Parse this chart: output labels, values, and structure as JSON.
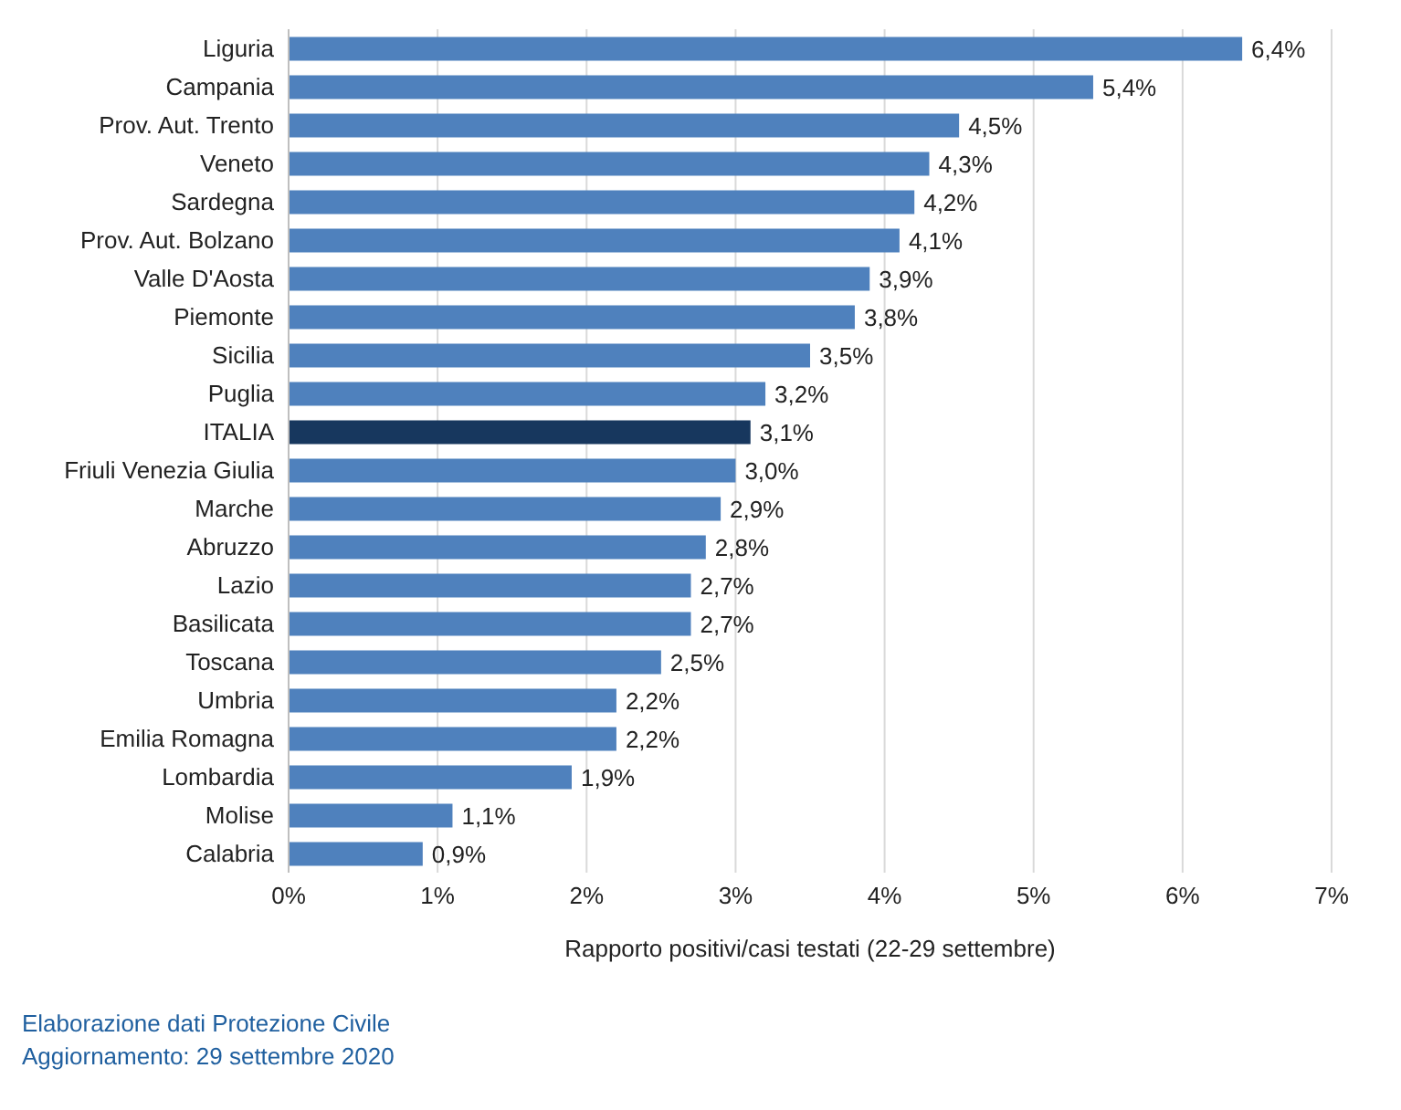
{
  "chart_data": {
    "type": "bar",
    "orientation": "horizontal",
    "xlabel": "Rapporto positivi/casi testati (22-29 settembre)",
    "categories": [
      "Liguria",
      "Campania",
      "Prov. Aut. Trento",
      "Veneto",
      "Sardegna",
      "Prov. Aut. Bolzano",
      "Valle D'Aosta",
      "Piemonte",
      "Sicilia",
      "Puglia",
      "ITALIA",
      "Friuli Venezia Giulia",
      "Marche",
      "Abruzzo",
      "Lazio",
      "Basilicata",
      "Toscana",
      "Umbria",
      "Emilia Romagna",
      "Lombardia",
      "Molise",
      "Calabria"
    ],
    "values": [
      6.4,
      5.4,
      4.5,
      4.3,
      4.2,
      4.1,
      3.9,
      3.8,
      3.5,
      3.2,
      3.1,
      3.0,
      2.9,
      2.8,
      2.7,
      2.7,
      2.5,
      2.2,
      2.2,
      1.9,
      1.1,
      0.9
    ],
    "value_labels": [
      "6,4%",
      "5,4%",
      "4,5%",
      "4,3%",
      "4,2%",
      "4,1%",
      "3,9%",
      "3,8%",
      "3,5%",
      "3,2%",
      "3,1%",
      "3,0%",
      "2,9%",
      "2,8%",
      "2,7%",
      "2,7%",
      "2,5%",
      "2,2%",
      "2,2%",
      "1,9%",
      "1,1%",
      "0,9%"
    ],
    "colors": [
      "#4f81bd",
      "#4f81bd",
      "#4f81bd",
      "#4f81bd",
      "#4f81bd",
      "#4f81bd",
      "#4f81bd",
      "#4f81bd",
      "#4f81bd",
      "#4f81bd",
      "#17375e",
      "#4f81bd",
      "#4f81bd",
      "#4f81bd",
      "#4f81bd",
      "#4f81bd",
      "#4f81bd",
      "#4f81bd",
      "#4f81bd",
      "#4f81bd",
      "#4f81bd",
      "#4f81bd"
    ],
    "xlim": [
      0,
      7
    ],
    "xticks": [
      {
        "value": 0,
        "label": "0%"
      },
      {
        "value": 1,
        "label": "1%"
      },
      {
        "value": 2,
        "label": "2%"
      },
      {
        "value": 3,
        "label": "3%"
      },
      {
        "value": 4,
        "label": "4%"
      },
      {
        "value": 5,
        "label": "5%"
      },
      {
        "value": 6,
        "label": "6%"
      },
      {
        "value": 7,
        "label": "7%"
      }
    ],
    "grid": "x",
    "annotations": [
      "Elaborazione dati Protezione Civile",
      "Aggiornamento: 29 settembre 2020"
    ]
  }
}
